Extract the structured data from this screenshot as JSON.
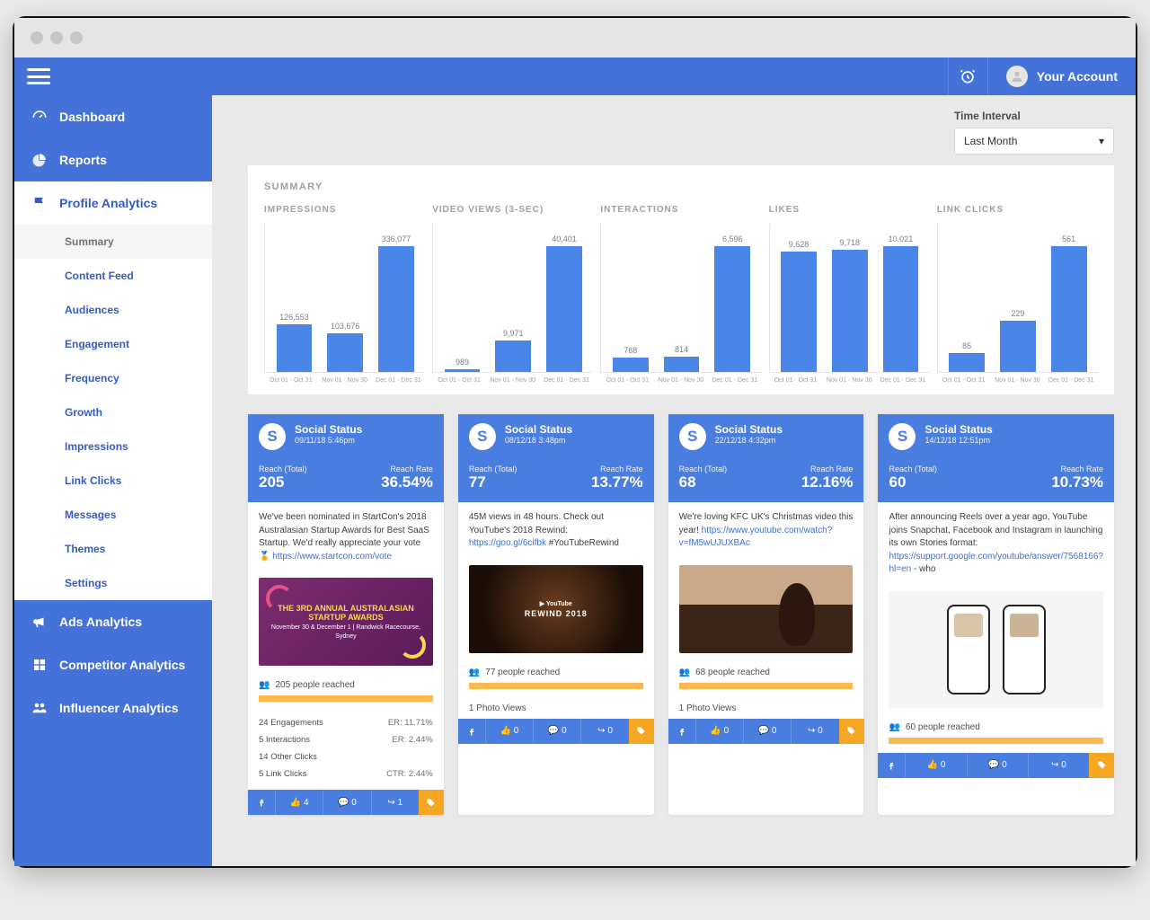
{
  "header": {
    "account_label": "Your Account"
  },
  "time_interval": {
    "label": "Time Interval",
    "selected": "Last Month"
  },
  "sidebar": {
    "items": [
      {
        "label": "Dashboard"
      },
      {
        "label": "Reports"
      },
      {
        "label": "Profile Analytics"
      },
      {
        "label": "Ads Analytics"
      },
      {
        "label": "Competitor Analytics"
      },
      {
        "label": "Influencer Analytics"
      }
    ],
    "sub": [
      {
        "label": "Summary"
      },
      {
        "label": "Content Feed"
      },
      {
        "label": "Audiences"
      },
      {
        "label": "Engagement"
      },
      {
        "label": "Frequency"
      },
      {
        "label": "Growth"
      },
      {
        "label": "Impressions"
      },
      {
        "label": "Link Clicks"
      },
      {
        "label": "Messages"
      },
      {
        "label": "Themes"
      },
      {
        "label": "Settings"
      }
    ]
  },
  "summary": {
    "title": "SUMMARY",
    "x_labels": [
      "Oct 01 - Oct 31",
      "Nov 01 - Nov 30",
      "Dec 01 - Dec 31"
    ],
    "bar_color": "#4a86e8",
    "axis_color": "#e3e5e9",
    "label_color": "#9aa0a9",
    "charts": [
      {
        "title": "IMPRESSIONS",
        "values": [
          126553,
          103676,
          336077
        ],
        "labels": [
          "126,553",
          "103,676",
          "336,077"
        ],
        "max": 336077
      },
      {
        "title": "VIDEO VIEWS (3-SEC)",
        "values": [
          989,
          9971,
          40401
        ],
        "labels": [
          "989",
          "9,971",
          "40,401"
        ],
        "max": 40401
      },
      {
        "title": "INTERACTIONS",
        "values": [
          768,
          814,
          6596
        ],
        "labels": [
          "768",
          "814",
          "6,596"
        ],
        "max": 6596
      },
      {
        "title": "LIKES",
        "values": [
          9628,
          9718,
          10021
        ],
        "labels": [
          "9,628",
          "9,718",
          "10,021"
        ],
        "max": 10021
      },
      {
        "title": "LINK CLICKS",
        "values": [
          85,
          229,
          561
        ],
        "labels": [
          "85",
          "229",
          "561"
        ],
        "max": 561
      }
    ]
  },
  "posts": [
    {
      "name": "Social Status",
      "date": "09/11/18 5:46pm",
      "reach_label": "Reach (Total)",
      "reach": "205",
      "rate_label": "Reach Rate",
      "rate": "36.54%",
      "text": "We've been nominated in StartCon's 2018 Australasian Startup Awards for Best SaaS Startup. We'd really appreciate your vote 🏅 ",
      "link": "https://www.startcon.com/vote",
      "img_kind": "purple",
      "img_text": "THE 3RD ANNUAL AUSTRALASIAN STARTUP AWARDS",
      "reached": "205 people reached",
      "reach_fill": 100,
      "eng": [
        {
          "l": "24 Engagements",
          "r": "ER: 11.71%"
        },
        {
          "l": "5 Interactions",
          "r": "ER: 2.44%"
        },
        {
          "l": "14 Other Clicks",
          "r": ""
        },
        {
          "l": "5 Link Clicks",
          "r": "CTR: 2.44%"
        }
      ],
      "foot": {
        "likes": "4",
        "comments": "0",
        "shares": "1"
      }
    },
    {
      "name": "Social Status",
      "date": "08/12/18 3:48pm",
      "reach_label": "Reach (Total)",
      "reach": "77",
      "rate_label": "Reach Rate",
      "rate": "13.77%",
      "text": "45M views in 48 hours. Check out YouTube's 2018 Rewind: ",
      "link": "https://goo.gl/6cifbk",
      "text2": " #YouTubeRewind",
      "img_kind": "dark",
      "img_text": "REWIND 2018",
      "reached": "77 people reached",
      "reach_fill": 100,
      "extra": "1 Photo Views",
      "foot": {
        "likes": "0",
        "comments": "0",
        "shares": "0"
      }
    },
    {
      "name": "Social Status",
      "date": "22/12/18 4:32pm",
      "reach_label": "Reach (Total)",
      "reach": "68",
      "rate_label": "Reach Rate",
      "rate": "12.16%",
      "text": "We're loving KFC UK's Christmas video this year! ",
      "link": "https://www.youtube.com/watch?v=fM5wUJUXBAc",
      "img_kind": "kfc",
      "reached": "68 people reached",
      "reach_fill": 100,
      "extra": "1 Photo Views",
      "foot": {
        "likes": "0",
        "comments": "0",
        "shares": "0"
      }
    },
    {
      "name": "Social Status",
      "date": "14/12/18 12:51pm",
      "reach_label": "Reach (Total)",
      "reach": "60",
      "rate_label": "Reach Rate",
      "rate": "10.73%",
      "text": "After announcing Reels over a year ago, YouTube joins Snapchat, Facebook and Instagram in launching its own Stories format: ",
      "link": "https://support.google.com/youtube/answer/7568166?hl=en",
      "text2": " - who",
      "img_kind": "phones",
      "reached": "60 people reached",
      "reach_fill": 100,
      "foot": {
        "likes": "0",
        "comments": "0",
        "shares": "0"
      }
    }
  ]
}
